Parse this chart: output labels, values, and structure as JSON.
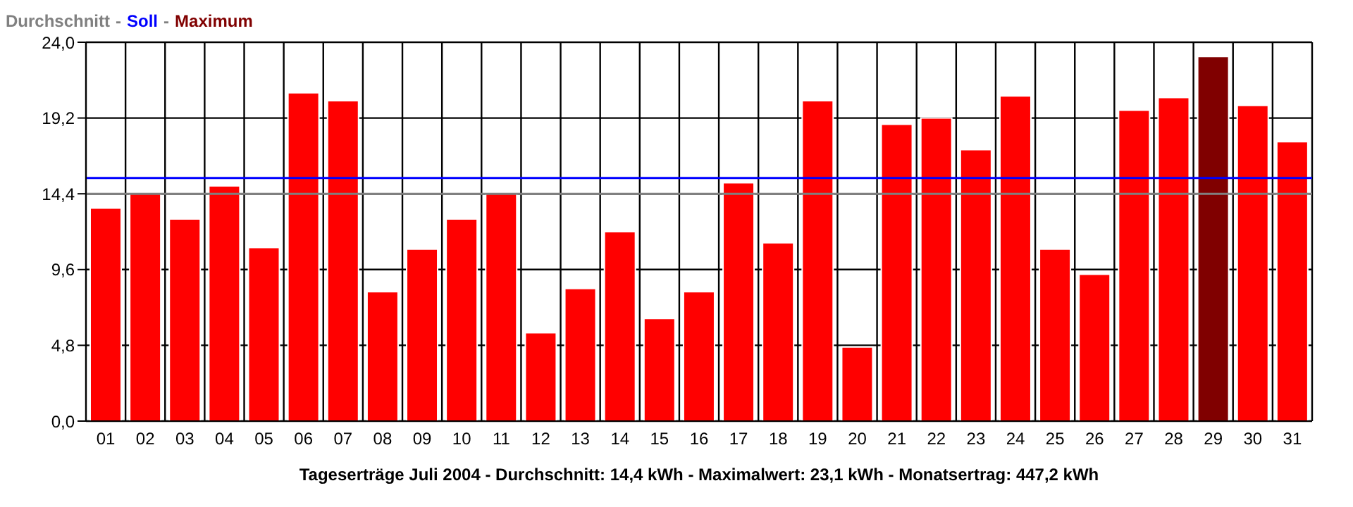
{
  "chart_data": {
    "type": "bar",
    "title": "Tageserträge Juli 2004 - Durchschnitt: 14,4 kWh - Maximalwert: 23,1 kWh - Monatsertrag: 447,2 kWh",
    "categories": [
      "01",
      "02",
      "03",
      "04",
      "05",
      "06",
      "07",
      "08",
      "09",
      "10",
      "11",
      "12",
      "13",
      "14",
      "15",
      "16",
      "17",
      "18",
      "19",
      "20",
      "21",
      "22",
      "23",
      "24",
      "25",
      "26",
      "27",
      "28",
      "29",
      "30",
      "31"
    ],
    "values": [
      13.5,
      14.5,
      12.8,
      14.9,
      11.0,
      20.8,
      20.3,
      8.2,
      10.9,
      12.8,
      14.5,
      5.6,
      8.4,
      12.0,
      6.5,
      8.2,
      15.1,
      11.3,
      20.3,
      4.7,
      18.8,
      19.2,
      17.2,
      20.6,
      10.9,
      9.3,
      19.7,
      20.5,
      23.1,
      20.0,
      17.7
    ],
    "colors": [
      "#ff0000",
      "#ff0000",
      "#ff0000",
      "#ff0000",
      "#ff0000",
      "#ff0000",
      "#ff0000",
      "#ff0000",
      "#ff0000",
      "#ff0000",
      "#ff0000",
      "#ff0000",
      "#ff0000",
      "#ff0000",
      "#ff0000",
      "#ff0000",
      "#ff0000",
      "#ff0000",
      "#ff0000",
      "#ff0000",
      "#ff0000",
      "#ff0000",
      "#ff0000",
      "#ff0000",
      "#ff0000",
      "#ff0000",
      "#ff0000",
      "#ff0000",
      "#800000",
      "#ff0000",
      "#ff0000"
    ],
    "ylim": [
      0,
      24
    ],
    "yticks": [
      {
        "value": 0,
        "label": "0,0"
      },
      {
        "value": 4.8,
        "label": "4,8"
      },
      {
        "value": 9.6,
        "label": "9,6"
      },
      {
        "value": 14.4,
        "label": "14,4"
      },
      {
        "value": 19.2,
        "label": "19,2"
      },
      {
        "value": 24,
        "label": "24,0"
      }
    ],
    "ref_lines": [
      {
        "axis": "y",
        "value": 14.4,
        "label": "Durchschnitt",
        "color": "#808080"
      },
      {
        "axis": "y",
        "value": 15.4,
        "label": "Soll",
        "color": "#0000ff"
      }
    ],
    "annotations": [
      "-",
      "-",
      "Maximum"
    ],
    "grid": true
  }
}
